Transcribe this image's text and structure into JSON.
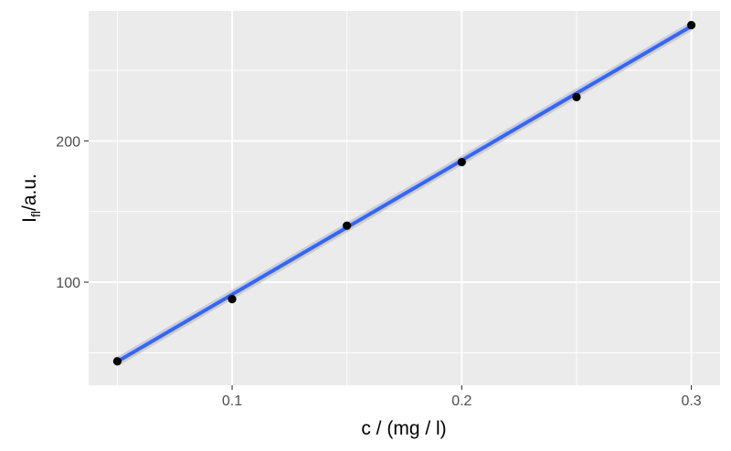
{
  "chart_data": {
    "type": "scatter",
    "xlabel": "c / (mg / l)",
    "ylabel_main": "I",
    "ylabel_sub": "fl",
    "ylabel_rest": "/a.u.",
    "xlim": [
      0.0375,
      0.3125
    ],
    "ylim": [
      27,
      292
    ],
    "x_ticks": [
      0.1,
      0.2,
      0.3
    ],
    "x_tick_labels": [
      "0.1",
      "0.2",
      "0.3"
    ],
    "x_minor_ticks": [
      0.05,
      0.15,
      0.25
    ],
    "y_ticks": [
      100,
      200
    ],
    "y_tick_labels": [
      "100",
      "200"
    ],
    "y_minor_ticks": [
      50,
      150,
      250
    ],
    "grid": true,
    "points": {
      "x": [
        0.05,
        0.1,
        0.15,
        0.2,
        0.25,
        0.3
      ],
      "y": [
        44,
        88,
        140,
        185,
        231,
        282
      ]
    },
    "fit": {
      "method": "linear",
      "x_range": [
        0.05,
        0.3
      ],
      "intercept": -3.7,
      "slope": 949.6,
      "ci_halfwidth": 3.5
    },
    "colors": {
      "panel_bg": "#ebebeb",
      "grid": "#ffffff",
      "points": "#000000",
      "fit_line": "#3366ff",
      "ci_band": "#c8c8c8"
    }
  }
}
